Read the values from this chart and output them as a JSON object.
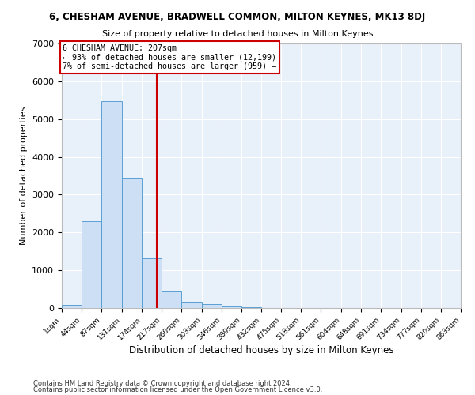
{
  "title": "6, CHESHAM AVENUE, BRADWELL COMMON, MILTON KEYNES, MK13 8DJ",
  "subtitle": "Size of property relative to detached houses in Milton Keynes",
  "xlabel": "Distribution of detached houses by size in Milton Keynes",
  "ylabel": "Number of detached properties",
  "bar_color": "#ccdff5",
  "bar_edge_color": "#5a9fd4",
  "background_color": "#e8f0fa",
  "grid_color": "#ffffff",
  "annotation_box_color": "#cc0000",
  "vline_color": "#cc0000",
  "property_size": 207,
  "bin_edges": [
    1,
    44,
    87,
    131,
    174,
    217,
    260,
    303,
    346,
    389,
    432,
    475,
    518,
    561,
    604,
    648,
    691,
    734,
    777,
    820,
    863
  ],
  "bin_labels": [
    "1sqm",
    "44sqm",
    "87sqm",
    "131sqm",
    "174sqm",
    "217sqm",
    "260sqm",
    "303sqm",
    "346sqm",
    "389sqm",
    "432sqm",
    "475sqm",
    "518sqm",
    "561sqm",
    "604sqm",
    "648sqm",
    "691sqm",
    "734sqm",
    "777sqm",
    "820sqm",
    "863sqm"
  ],
  "counts": [
    80,
    2300,
    5470,
    3450,
    1320,
    460,
    175,
    100,
    60,
    30,
    0,
    0,
    0,
    0,
    0,
    0,
    0,
    0,
    0,
    0
  ],
  "annotation_text": "6 CHESHAM AVENUE: 207sqm\n← 93% of detached houses are smaller (12,199)\n7% of semi-detached houses are larger (959) →",
  "ylim": [
    0,
    7000
  ],
  "footer_line1": "Contains HM Land Registry data © Crown copyright and database right 2024.",
  "footer_line2": "Contains public sector information licensed under the Open Government Licence v3.0."
}
